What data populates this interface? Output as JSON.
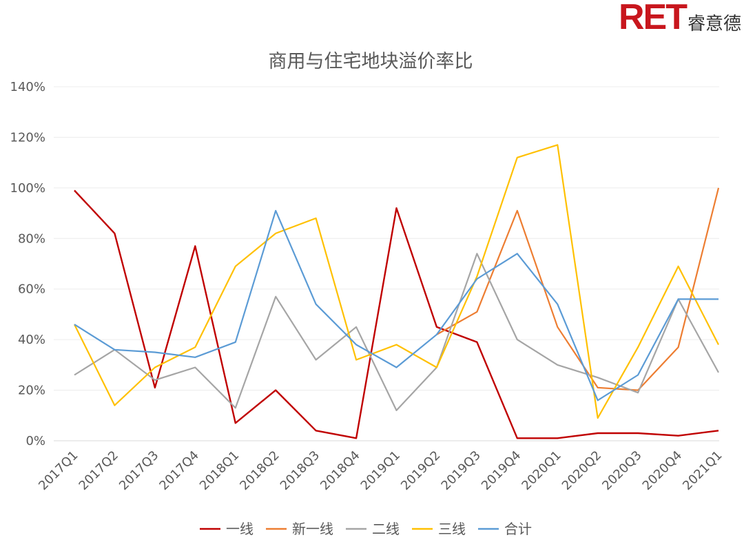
{
  "logo": {
    "mark": "RET",
    "name": "睿意德"
  },
  "chart_data": {
    "type": "line",
    "title": "商用与住宅地块溢价率比",
    "categories": [
      "2017Q1",
      "2017Q2",
      "2017Q3",
      "2017Q4",
      "2018Q1",
      "2018Q2",
      "2018Q3",
      "2018Q4",
      "2019Q1",
      "2019Q2",
      "2019Q3",
      "2019Q4",
      "2020Q1",
      "2020Q2",
      "2020Q3",
      "2020Q4",
      "2021Q1"
    ],
    "y_ticks": [
      "0%",
      "20%",
      "40%",
      "60%",
      "80%",
      "100%",
      "120%",
      "140%"
    ],
    "ylim": [
      0,
      140
    ],
    "grid": true,
    "legend_position": "bottom",
    "series": [
      {
        "name": "一线",
        "color": "#c00000",
        "values": [
          99,
          82,
          21,
          77,
          7,
          20,
          4,
          1,
          92,
          45,
          39,
          1,
          1,
          3,
          3,
          2,
          4
        ]
      },
      {
        "name": "新一线",
        "color": "#ed7d31",
        "values": [
          null,
          null,
          null,
          null,
          null,
          null,
          null,
          null,
          null,
          42,
          51,
          91,
          45,
          21,
          20,
          37,
          100
        ]
      },
      {
        "name": "二线",
        "color": "#a5a5a5",
        "values": [
          26,
          36,
          24,
          29,
          13,
          57,
          32,
          45,
          12,
          29,
          74,
          40,
          30,
          25,
          19,
          56,
          27
        ]
      },
      {
        "name": "三线",
        "color": "#ffc000",
        "values": [
          46,
          14,
          29,
          37,
          69,
          82,
          88,
          32,
          38,
          29,
          65,
          112,
          117,
          9,
          37,
          69,
          38
        ]
      },
      {
        "name": "合计",
        "color": "#5b9bd5",
        "values": [
          46,
          36,
          35,
          33,
          39,
          91,
          54,
          38,
          29,
          42,
          64,
          74,
          54,
          16,
          26,
          56,
          56
        ]
      }
    ]
  }
}
